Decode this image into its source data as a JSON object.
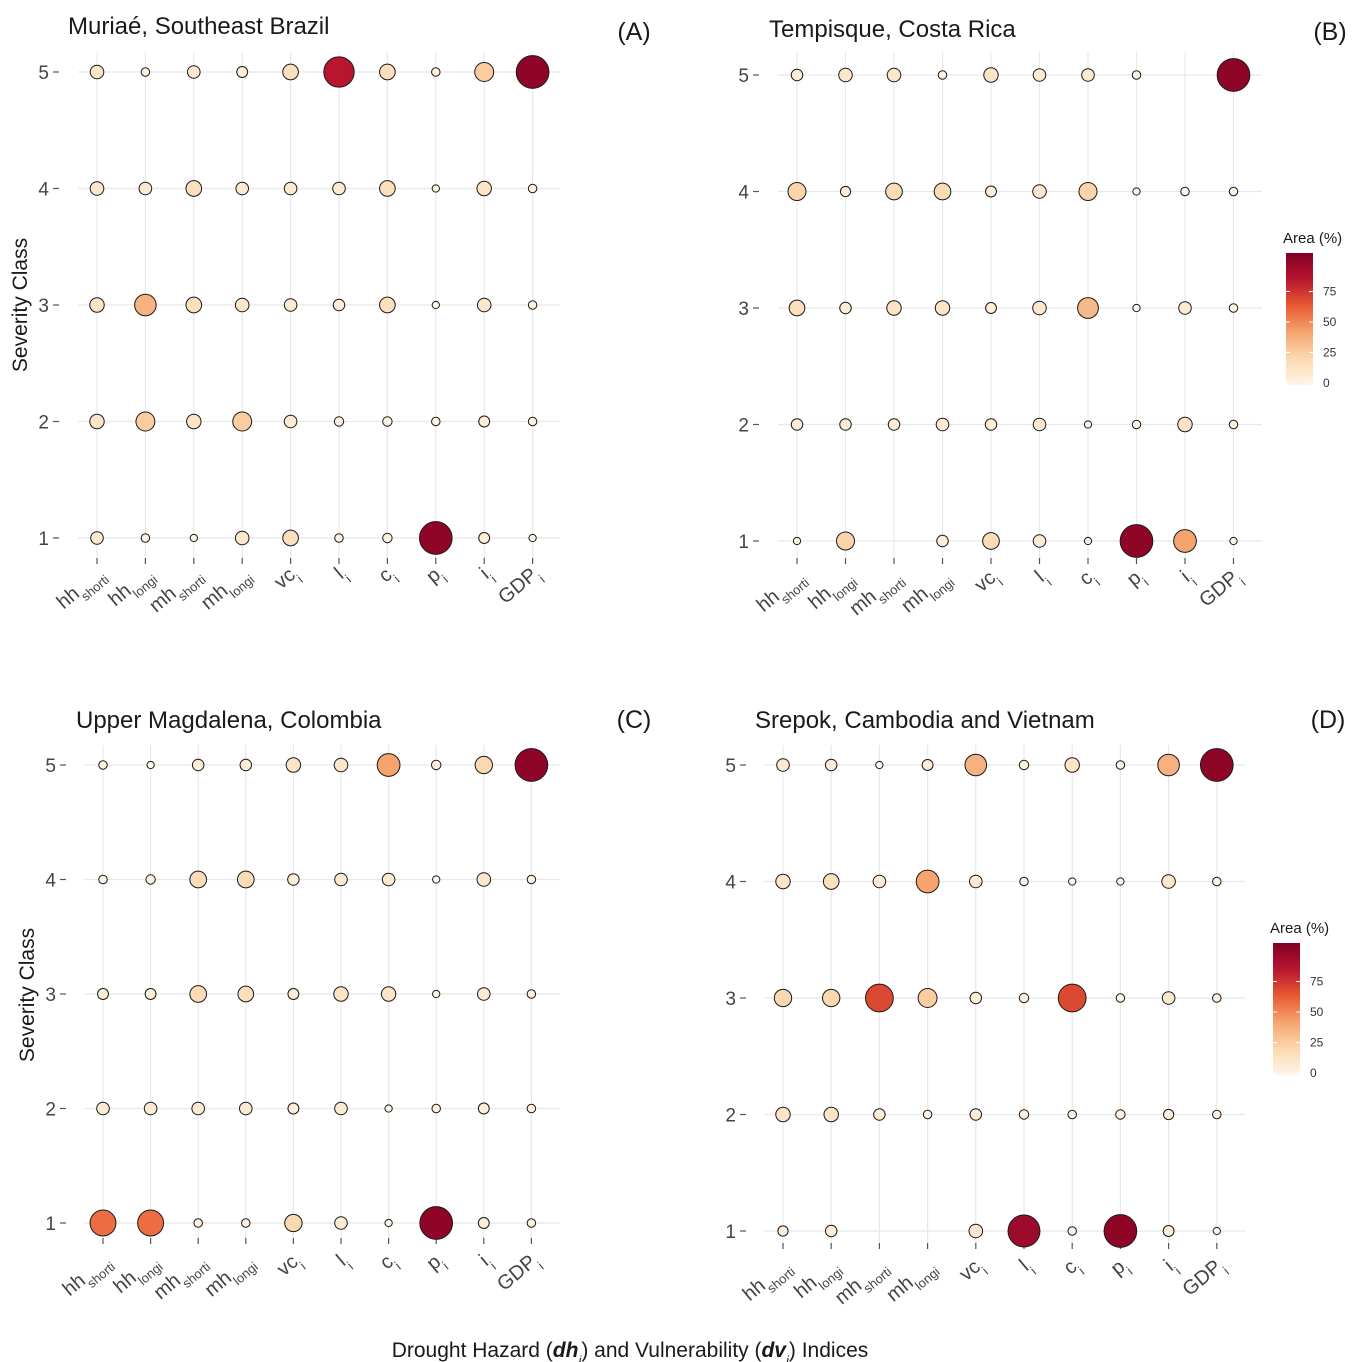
{
  "figure": {
    "xlabel_parts": [
      "Drought Hazard (",
      "dh",
      "i",
      ") and Vulnerability (",
      "dv",
      "i",
      ") Indices"
    ],
    "ylabel": "Severity Class"
  },
  "legend": {
    "title": "Area (%)",
    "ticks": [
      "75",
      "50",
      "25",
      "0"
    ],
    "colors": [
      "#fff5e8",
      "#fbd9b0",
      "#f6a46e",
      "#e85a33",
      "#b8152f",
      "#800026"
    ]
  },
  "chart_data": [
    {
      "type": "scatter",
      "title": "Muriaé, Southeast Brazil",
      "panel_label": "(A)",
      "ylabel": "Severity Class",
      "y_ticks": [
        "1",
        "2",
        "3",
        "4",
        "5"
      ],
      "x_categories": [
        {
          "base": "hh",
          "sub": "short",
          "idx": "i"
        },
        {
          "base": "hh",
          "sub": "long",
          "idx": "i"
        },
        {
          "base": "mh",
          "sub": "short",
          "idx": "i"
        },
        {
          "base": "mh",
          "sub": "long",
          "idx": "i"
        },
        {
          "base": "vc",
          "sub": "",
          "idx": "i"
        },
        {
          "base": "l",
          "sub": "",
          "idx": "i"
        },
        {
          "base": "c",
          "sub": "",
          "idx": "i"
        },
        {
          "base": "p",
          "sub": "",
          "idx": "i"
        },
        {
          "base": "i",
          "sub": "",
          "idx": "i"
        },
        {
          "base": "GDP",
          "sub": "",
          "idx": "i"
        }
      ],
      "size_legend": "Area (%)",
      "values": {
        "5": [
          10,
          2,
          8,
          5,
          15,
          80,
          15,
          2,
          25,
          95
        ],
        "4": [
          10,
          8,
          15,
          8,
          8,
          8,
          15,
          1,
          12,
          2
        ],
        "3": [
          12,
          35,
          15,
          10,
          8,
          6,
          15,
          1,
          10,
          2
        ],
        "2": [
          12,
          25,
          12,
          25,
          8,
          3,
          3,
          2,
          5,
          2
        ],
        "1": [
          8,
          2,
          1,
          10,
          15,
          2,
          3,
          95,
          5,
          1
        ]
      }
    },
    {
      "type": "scatter",
      "title": "Tempisque, Costa Rica",
      "panel_label": "(B)",
      "ylabel": "",
      "y_ticks": [
        "1",
        "2",
        "3",
        "4",
        "5"
      ],
      "x_categories": [
        {
          "base": "hh",
          "sub": "short",
          "idx": "i"
        },
        {
          "base": "hh",
          "sub": "long",
          "idx": "i"
        },
        {
          "base": "mh",
          "sub": "short",
          "idx": "i"
        },
        {
          "base": "mh",
          "sub": "long",
          "idx": "i"
        },
        {
          "base": "vc",
          "sub": "",
          "idx": "i"
        },
        {
          "base": "l",
          "sub": "",
          "idx": "i"
        },
        {
          "base": "c",
          "sub": "",
          "idx": "i"
        },
        {
          "base": "p",
          "sub": "",
          "idx": "i"
        },
        {
          "base": "i",
          "sub": "",
          "idx": "i"
        },
        {
          "base": "GDP",
          "sub": "",
          "idx": "i"
        }
      ],
      "size_legend": "Area (%)",
      "values": {
        "5": [
          6,
          10,
          10,
          2,
          12,
          8,
          8,
          2,
          0,
          95
        ],
        "4": [
          22,
          4,
          18,
          18,
          5,
          10,
          22,
          1,
          2,
          2
        ],
        "3": [
          15,
          6,
          12,
          12,
          5,
          10,
          32,
          1,
          8,
          2
        ],
        "2": [
          6,
          6,
          6,
          8,
          6,
          8,
          1,
          2,
          12,
          2
        ],
        "1": [
          1,
          22,
          0,
          6,
          18,
          8,
          1,
          95,
          40,
          1
        ]
      }
    },
    {
      "type": "scatter",
      "title": "Upper Magdalena, Colombia",
      "panel_label": "(C)",
      "ylabel": "Severity Class",
      "y_ticks": [
        "1",
        "2",
        "3",
        "4",
        "5"
      ],
      "x_categories": [
        {
          "base": "hh",
          "sub": "short",
          "idx": "i"
        },
        {
          "base": "hh",
          "sub": "long",
          "idx": "i"
        },
        {
          "base": "mh",
          "sub": "short",
          "idx": "i"
        },
        {
          "base": "mh",
          "sub": "long",
          "idx": "i"
        },
        {
          "base": "vc",
          "sub": "",
          "idx": "i"
        },
        {
          "base": "l",
          "sub": "",
          "idx": "i"
        },
        {
          "base": "c",
          "sub": "",
          "idx": "i"
        },
        {
          "base": "p",
          "sub": "",
          "idx": "i"
        },
        {
          "base": "i",
          "sub": "",
          "idx": "i"
        },
        {
          "base": "GDP",
          "sub": "",
          "idx": "i"
        }
      ],
      "size_legend": "Area (%)",
      "values": {
        "5": [
          2,
          1,
          6,
          6,
          12,
          10,
          40,
          3,
          20,
          95
        ],
        "4": [
          2,
          3,
          18,
          18,
          6,
          8,
          8,
          1,
          10,
          2
        ],
        "3": [
          5,
          5,
          18,
          15,
          5,
          12,
          12,
          1,
          8,
          2
        ],
        "2": [
          8,
          8,
          8,
          8,
          5,
          8,
          1,
          2,
          5,
          2
        ],
        "1": [
          55,
          55,
          2,
          2,
          20,
          8,
          1,
          95,
          5,
          2
        ]
      }
    },
    {
      "type": "scatter",
      "title": "Srepok, Cambodia and Vietnam",
      "panel_label": "(D)",
      "ylabel": "",
      "y_ticks": [
        "1",
        "2",
        "3",
        "4",
        "5"
      ],
      "x_categories": [
        {
          "base": "hh",
          "sub": "short",
          "idx": "i"
        },
        {
          "base": "hh",
          "sub": "long",
          "idx": "i"
        },
        {
          "base": "mh",
          "sub": "short",
          "idx": "i"
        },
        {
          "base": "mh",
          "sub": "long",
          "idx": "i"
        },
        {
          "base": "vc",
          "sub": "",
          "idx": "i"
        },
        {
          "base": "l",
          "sub": "",
          "idx": "i"
        },
        {
          "base": "c",
          "sub": "",
          "idx": "i"
        },
        {
          "base": "p",
          "sub": "",
          "idx": "i"
        },
        {
          "base": "i",
          "sub": "",
          "idx": "i"
        },
        {
          "base": "GDP",
          "sub": "",
          "idx": "i"
        }
      ],
      "size_legend": "Area (%)",
      "values": {
        "5": [
          8,
          6,
          1,
          5,
          35,
          3,
          12,
          2,
          35,
          95
        ],
        "4": [
          12,
          15,
          8,
          40,
          8,
          2,
          1,
          1,
          10,
          2
        ],
        "3": [
          20,
          20,
          65,
          25,
          6,
          3,
          65,
          2,
          8,
          2
        ],
        "2": [
          12,
          12,
          6,
          2,
          6,
          3,
          2,
          3,
          4,
          2
        ],
        "1": [
          4,
          6,
          0,
          0,
          10,
          90,
          2,
          95,
          5,
          1
        ]
      }
    }
  ]
}
